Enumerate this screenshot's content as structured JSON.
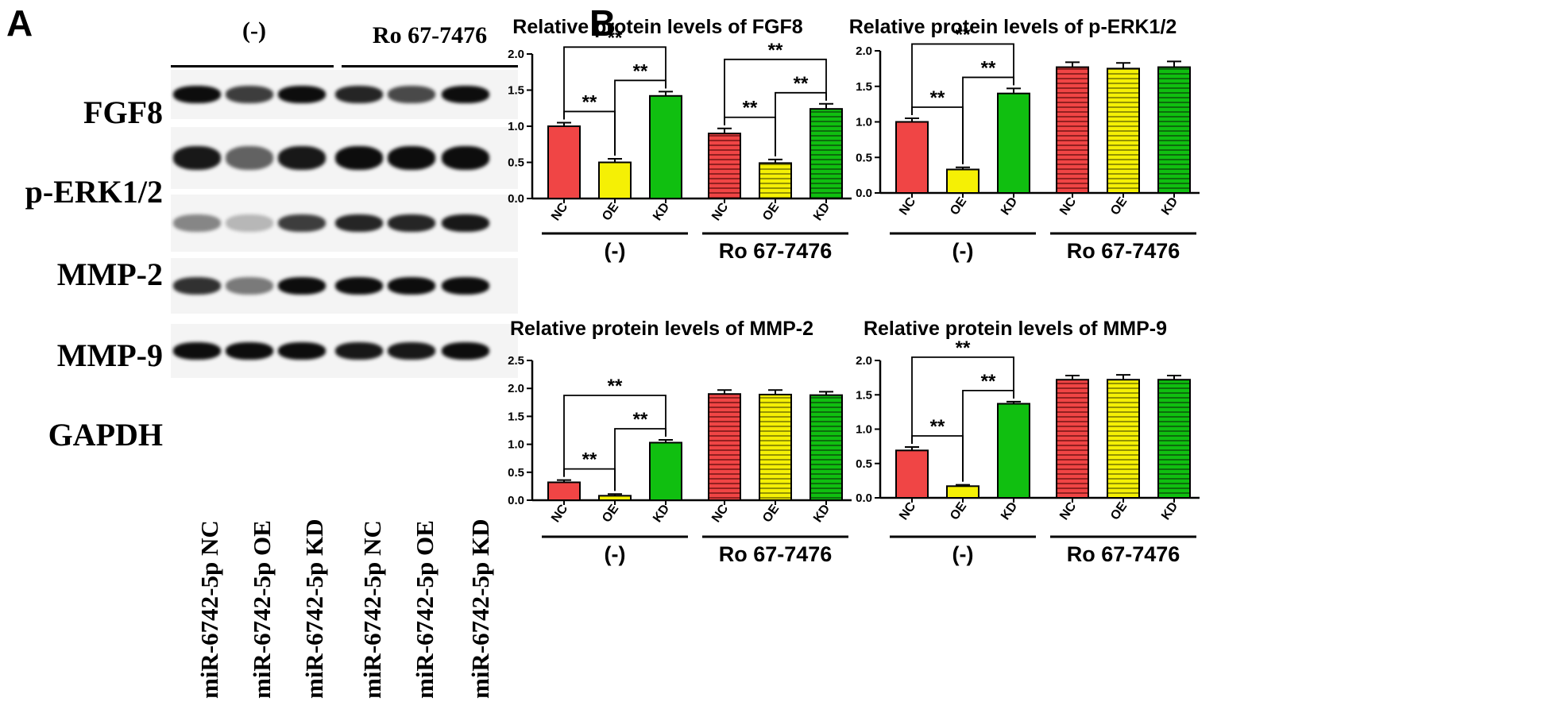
{
  "panels": {
    "a_letter": "A",
    "b_letter": "B"
  },
  "blot": {
    "groups": [
      "(-)",
      "Ro 67-7476"
    ],
    "proteins": [
      "FGF8",
      "p-ERK1/2",
      "MMP-2",
      "MMP-9",
      "GAPDH"
    ],
    "lanes": [
      "miR-6742-5p NC",
      "miR-6742-5p OE",
      "miR-6742-5p KD",
      "miR-6742-5p NC",
      "miR-6742-5p OE",
      "miR-6742-5p KD"
    ]
  },
  "colors": {
    "NC": "#f04545",
    "OE": "#f5f005",
    "KD": "#10bf10",
    "ink": "#000000"
  },
  "chart_data": [
    {
      "type": "bar",
      "title": "Relative protein levels of FGF8",
      "categories": [
        "NC",
        "OE",
        "KD",
        "NC",
        "OE",
        "KD"
      ],
      "groups": [
        "(-)",
        "Ro 67-7476"
      ],
      "values": [
        1.0,
        0.5,
        1.42,
        0.9,
        0.49,
        1.24
      ],
      "errors": [
        0.05,
        0.05,
        0.06,
        0.07,
        0.05,
        0.07
      ],
      "ylim": [
        0,
        2.0
      ],
      "yticks": [
        "0.0",
        "0.5",
        "1.0",
        "1.5",
        "2.0"
      ],
      "significance": [
        {
          "from": 0,
          "to": 1,
          "label": "**"
        },
        {
          "from": 1,
          "to": 2,
          "label": "**"
        },
        {
          "from": 0,
          "to": 2,
          "label": "**"
        },
        {
          "from": 3,
          "to": 4,
          "label": "**"
        },
        {
          "from": 4,
          "to": 5,
          "label": "**"
        },
        {
          "from": 3,
          "to": 5,
          "label": "**"
        }
      ]
    },
    {
      "type": "bar",
      "title": "Relative protein levels of p-ERK1/2",
      "categories": [
        "NC",
        "OE",
        "KD",
        "NC",
        "OE",
        "KD"
      ],
      "groups": [
        "(-)",
        "Ro 67-7476"
      ],
      "values": [
        1.0,
        0.33,
        1.4,
        1.77,
        1.75,
        1.77
      ],
      "errors": [
        0.05,
        0.03,
        0.07,
        0.07,
        0.08,
        0.08
      ],
      "ylim": [
        0,
        2.0
      ],
      "yticks": [
        "0.0",
        "0.5",
        "1.0",
        "1.5",
        "2.0"
      ],
      "significance": [
        {
          "from": 0,
          "to": 1,
          "label": "**"
        },
        {
          "from": 1,
          "to": 2,
          "label": "**"
        },
        {
          "from": 0,
          "to": 2,
          "label": "**"
        }
      ]
    },
    {
      "type": "bar",
      "title": "Relative protein levels of MMP-2",
      "categories": [
        "NC",
        "OE",
        "KD",
        "NC",
        "OE",
        "KD"
      ],
      "groups": [
        "(-)",
        "Ro 67-7476"
      ],
      "values": [
        0.32,
        0.08,
        1.03,
        1.9,
        1.89,
        1.88
      ],
      "errors": [
        0.04,
        0.03,
        0.05,
        0.07,
        0.08,
        0.06
      ],
      "ylim": [
        0,
        2.5
      ],
      "yticks": [
        "0.0",
        "0.5",
        "1.0",
        "1.5",
        "2.0",
        "2.5"
      ],
      "significance": [
        {
          "from": 0,
          "to": 1,
          "label": "**"
        },
        {
          "from": 1,
          "to": 2,
          "label": "**"
        },
        {
          "from": 0,
          "to": 2,
          "label": "**"
        }
      ]
    },
    {
      "type": "bar",
      "title": "Relative protein levels of MMP-9",
      "categories": [
        "NC",
        "OE",
        "KD",
        "NC",
        "OE",
        "KD"
      ],
      "groups": [
        "(-)",
        "Ro 67-7476"
      ],
      "values": [
        0.69,
        0.17,
        1.37,
        1.72,
        1.72,
        1.72
      ],
      "errors": [
        0.05,
        0.02,
        0.03,
        0.06,
        0.07,
        0.06
      ],
      "ylim": [
        0,
        2.0
      ],
      "yticks": [
        "0.0",
        "0.5",
        "1.0",
        "1.5",
        "2.0"
      ],
      "significance": [
        {
          "from": 0,
          "to": 1,
          "label": "**"
        },
        {
          "from": 1,
          "to": 2,
          "label": "**"
        },
        {
          "from": 0,
          "to": 2,
          "label": "**"
        }
      ]
    }
  ]
}
